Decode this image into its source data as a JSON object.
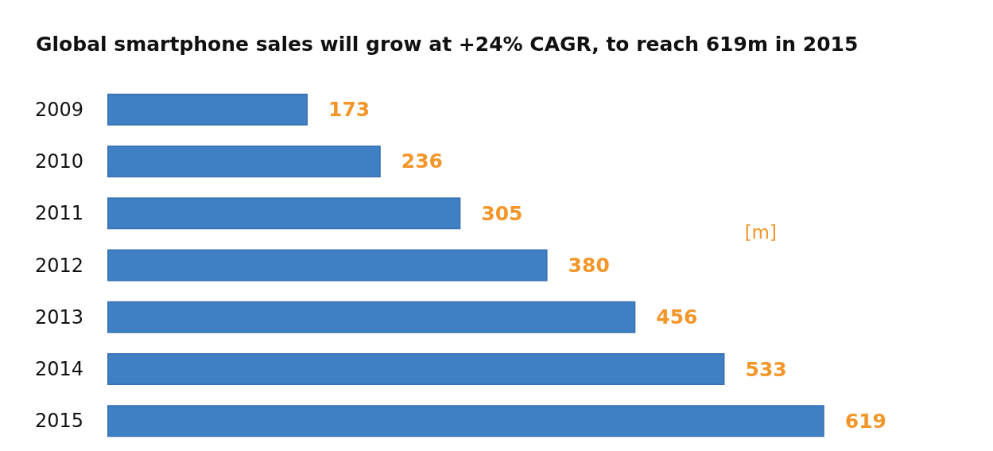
{
  "chart_data": {
    "type": "bar",
    "orientation": "horizontal",
    "title": "Global smartphone sales will grow at +24% CAGR, to reach 619m in 2015",
    "categories": [
      "2009",
      "2010",
      "2011",
      "2012",
      "2013",
      "2014",
      "2015"
    ],
    "values": [
      173,
      236,
      305,
      380,
      456,
      533,
      619
    ],
    "color": "#3f7fc4",
    "data_labels": true,
    "annotations": [
      "[m]"
    ]
  }
}
